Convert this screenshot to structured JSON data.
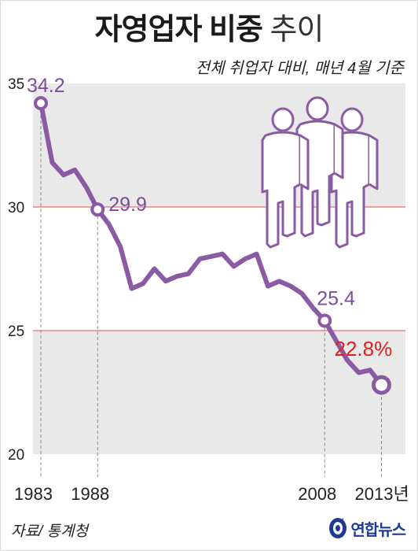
{
  "header": {
    "title_bold": "자영업자 비중",
    "title_light": "추이",
    "subtitle": "전체 취업자 대비, 매년 4월 기준"
  },
  "footer": {
    "source": "자료/ 통계청",
    "logo_text": "연합뉴스"
  },
  "colors": {
    "line": "#8a5aa3",
    "label": "#7a4e98",
    "highlight": "#e0201b",
    "band": "#e9e9e9",
    "refline": "#d9534f"
  },
  "chart_data": {
    "type": "line",
    "title": "자영업자 비중 추이",
    "subtitle": "전체 취업자 대비, 매년 4월 기준",
    "x": [
      1983,
      1984,
      1985,
      1986,
      1987,
      1988,
      1989,
      1990,
      1991,
      1992,
      1993,
      1994,
      1995,
      1996,
      1997,
      1998,
      1999,
      2000,
      2001,
      2002,
      2003,
      2004,
      2005,
      2006,
      2007,
      2008,
      2009,
      2010,
      2011,
      2012,
      2013
    ],
    "series": [
      {
        "values": [
          34.2,
          31.8,
          31.3,
          31.5,
          30.8,
          29.9,
          29.3,
          28.4,
          26.7,
          26.9,
          27.5,
          27.0,
          27.2,
          27.3,
          27.9,
          28.0,
          28.1,
          27.6,
          27.9,
          28.1,
          26.8,
          27.0,
          26.8,
          26.5,
          25.9,
          25.4,
          24.6,
          23.8,
          23.3,
          23.4,
          22.8
        ]
      }
    ],
    "ylim": [
      20,
      36
    ],
    "yticks": [
      "20",
      "25",
      "30",
      "35"
    ],
    "xtick_labels": [
      "1983",
      "1988",
      "2008",
      "2013년"
    ],
    "xtick_years": [
      1983,
      1988,
      2008,
      2013
    ],
    "annotations": [
      {
        "year": 1983,
        "label": "34.2",
        "highlight": false
      },
      {
        "year": 1988,
        "label": "29.9",
        "highlight": false
      },
      {
        "year": 2008,
        "label": "25.4",
        "highlight": false
      },
      {
        "year": 2013,
        "label": "22.8%",
        "highlight": true
      }
    ],
    "grid": "alternating horizontal bands",
    "legend": "none"
  }
}
